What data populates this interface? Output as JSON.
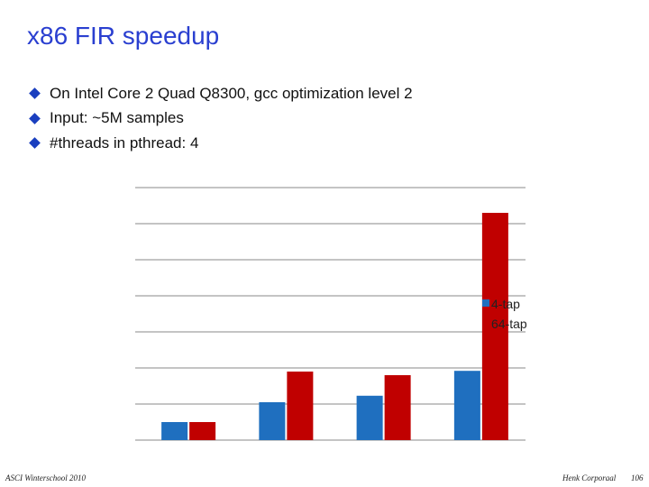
{
  "slide": {
    "title": "x86 FIR speedup",
    "bullets": [
      "On Intel Core 2 Quad Q8300, gcc optimization level 2",
      "Input: ~5M samples",
      "#threads in pthread: 4"
    ],
    "footer_left": "ASCI Winterschool 2010",
    "footer_center": "Henk Corporaal",
    "footer_page": "106"
  },
  "colors": {
    "title": "#2a3fd0",
    "bullet": "#1a3fbf",
    "series_1": "#1f6fbf",
    "series_2": "#c00000",
    "grid": "#888888"
  },
  "chart_data": {
    "type": "bar",
    "categories": [
      "",
      "",
      "",
      ""
    ],
    "series": [
      {
        "name": "4-tap",
        "values": [
          0.5,
          1.05,
          1.23,
          1.92
        ]
      },
      {
        "name": "64-tap",
        "values": [
          0.5,
          1.9,
          1.8,
          6.3
        ]
      }
    ],
    "ylim": [
      0,
      7
    ],
    "grid": true,
    "legend_position": "right"
  }
}
